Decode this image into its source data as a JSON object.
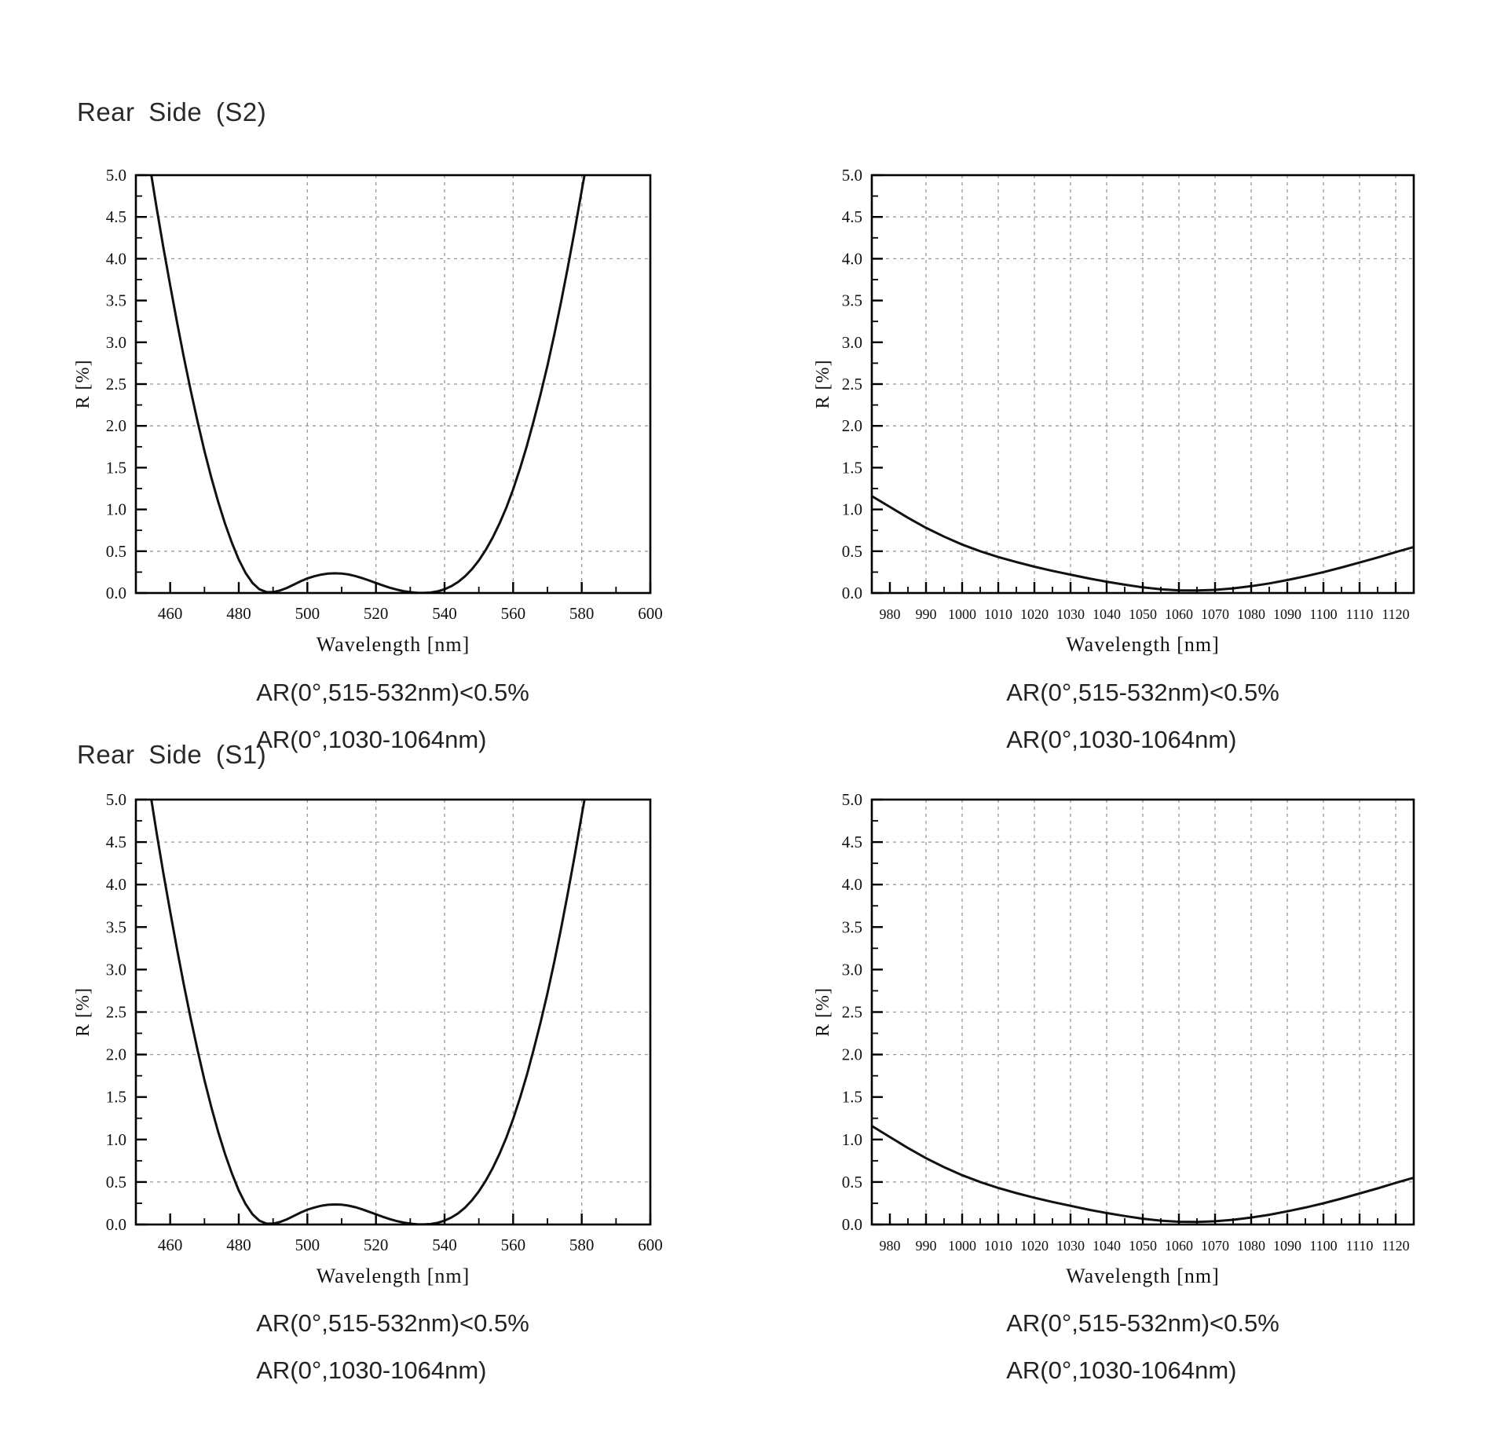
{
  "page": {
    "background": "#ffffff",
    "text_color": "#1a1a1a",
    "grid_color": "#999999",
    "curve_color": "#111111",
    "frame_color": "#000000"
  },
  "sections": [
    {
      "heading": "Rear Side (S2)",
      "left_caption": {
        "line1": "AR(0°,515-532nm)<0.5%",
        "line2": "AR(0°,1030-1064nm)"
      },
      "right_caption": {
        "line1": "AR(0°,515-532nm)<0.5%",
        "line2": "AR(0°,1030-1064nm)"
      }
    },
    {
      "heading": "Rear Side (S1)",
      "left_caption": {
        "line1": "AR(0°,515-532nm)<0.5%",
        "line2": "AR(0°,1030-1064nm)"
      },
      "right_caption": {
        "line1": "AR(0°,515-532nm)<0.5%",
        "line2": "AR(0°,1030-1064nm)"
      }
    }
  ],
  "chart_data": [
    {
      "type": "line",
      "section": "Rear Side (S2)",
      "position": "left",
      "title": "",
      "xlabel": "Wavelength [nm]",
      "ylabel": "R [%]",
      "xlim": [
        450,
        600
      ],
      "ylim": [
        0,
        5
      ],
      "x_ticks": [
        460,
        480,
        500,
        520,
        540,
        560,
        580,
        600
      ],
      "x_minor_step": 10,
      "y_tick_step": 0.5,
      "y_minor_step": 0.25,
      "grid_x": [
        500,
        520,
        540,
        560,
        580
      ],
      "grid_y": [
        0.5,
        2.0,
        2.5,
        4.0,
        4.5
      ],
      "grid_style": "dashed",
      "legend": "none",
      "series": [
        {
          "name": "R",
          "points": [
            [
              454.5,
              5.0
            ],
            [
              456,
              4.62
            ],
            [
              458,
              4.14
            ],
            [
              460,
              3.68
            ],
            [
              462,
              3.24
            ],
            [
              464,
              2.82
            ],
            [
              466,
              2.42
            ],
            [
              468,
              2.05
            ],
            [
              470,
              1.7
            ],
            [
              472,
              1.38
            ],
            [
              474,
              1.09
            ],
            [
              476,
              0.83
            ],
            [
              478,
              0.6
            ],
            [
              480,
              0.4
            ],
            [
              482,
              0.24
            ],
            [
              484,
              0.12
            ],
            [
              486,
              0.045
            ],
            [
              488,
              0.012
            ],
            [
              490,
              0.01
            ],
            [
              492,
              0.03
            ],
            [
              494,
              0.06
            ],
            [
              496,
              0.1
            ],
            [
              498,
              0.14
            ],
            [
              500,
              0.175
            ],
            [
              502,
              0.2
            ],
            [
              504,
              0.22
            ],
            [
              506,
              0.232
            ],
            [
              508,
              0.236
            ],
            [
              510,
              0.233
            ],
            [
              512,
              0.222
            ],
            [
              514,
              0.203
            ],
            [
              516,
              0.178
            ],
            [
              518,
              0.15
            ],
            [
              520,
              0.12
            ],
            [
              522,
              0.091
            ],
            [
              524,
              0.064
            ],
            [
              526,
              0.041
            ],
            [
              528,
              0.023
            ],
            [
              530,
              0.01
            ],
            [
              532,
              0.003
            ],
            [
              534,
              0.001
            ],
            [
              536,
              0.006
            ],
            [
              538,
              0.02
            ],
            [
              540,
              0.045
            ],
            [
              542,
              0.082
            ],
            [
              544,
              0.133
            ],
            [
              546,
              0.2
            ],
            [
              548,
              0.285
            ],
            [
              550,
              0.39
            ],
            [
              552,
              0.515
            ],
            [
              554,
              0.66
            ],
            [
              556,
              0.83
            ],
            [
              558,
              1.02
            ],
            [
              560,
              1.24
            ],
            [
              562,
              1.49
            ],
            [
              564,
              1.76
            ],
            [
              566,
              2.06
            ],
            [
              568,
              2.38
            ],
            [
              570,
              2.72
            ],
            [
              572,
              3.09
            ],
            [
              574,
              3.49
            ],
            [
              576,
              3.91
            ],
            [
              578,
              4.35
            ],
            [
              580,
              4.82
            ],
            [
              580.8,
              5.0
            ]
          ]
        }
      ]
    },
    {
      "type": "line",
      "section": "Rear Side (S2)",
      "position": "right",
      "title": "",
      "xlabel": "Wavelength [nm]",
      "ylabel": "R [%]",
      "xlim": [
        975,
        1125
      ],
      "ylim": [
        0,
        5
      ],
      "x_ticks": [
        980,
        990,
        1000,
        1010,
        1020,
        1030,
        1040,
        1050,
        1060,
        1070,
        1080,
        1090,
        1100,
        1110,
        1120
      ],
      "x_minor_step": 5,
      "y_tick_step": 0.5,
      "y_minor_step": 0.25,
      "grid_x": [
        990,
        1000,
        1010,
        1020,
        1030,
        1040,
        1050,
        1060,
        1070,
        1080,
        1090,
        1100,
        1110,
        1120
      ],
      "grid_y": [
        0.5,
        2.0,
        2.5,
        4.0,
        4.5
      ],
      "grid_style": "dashed",
      "legend": "none",
      "series": [
        {
          "name": "R",
          "points": [
            [
              975,
              1.16
            ],
            [
              980,
              1.03
            ],
            [
              985,
              0.9
            ],
            [
              990,
              0.78
            ],
            [
              995,
              0.675
            ],
            [
              1000,
              0.58
            ],
            [
              1005,
              0.5
            ],
            [
              1010,
              0.43
            ],
            [
              1015,
              0.37
            ],
            [
              1020,
              0.315
            ],
            [
              1025,
              0.265
            ],
            [
              1030,
              0.22
            ],
            [
              1035,
              0.175
            ],
            [
              1040,
              0.135
            ],
            [
              1045,
              0.1
            ],
            [
              1050,
              0.068
            ],
            [
              1055,
              0.045
            ],
            [
              1060,
              0.032
            ],
            [
              1065,
              0.03
            ],
            [
              1070,
              0.038
            ],
            [
              1075,
              0.055
            ],
            [
              1080,
              0.082
            ],
            [
              1085,
              0.115
            ],
            [
              1090,
              0.155
            ],
            [
              1095,
              0.2
            ],
            [
              1100,
              0.25
            ],
            [
              1105,
              0.305
            ],
            [
              1110,
              0.365
            ],
            [
              1115,
              0.425
            ],
            [
              1120,
              0.49
            ],
            [
              1125,
              0.55
            ]
          ]
        }
      ]
    },
    {
      "type": "line",
      "section": "Rear Side (S1)",
      "position": "left",
      "title": "",
      "xlabel": "Wavelength [nm]",
      "ylabel": "R [%]",
      "xlim": [
        450,
        600
      ],
      "ylim": [
        0,
        5
      ],
      "x_ticks": [
        460,
        480,
        500,
        520,
        540,
        560,
        580,
        600
      ],
      "x_minor_step": 10,
      "y_tick_step": 0.5,
      "y_minor_step": 0.25,
      "grid_x": [
        500,
        520,
        540,
        560,
        580
      ],
      "grid_y": [
        0.5,
        2.0,
        2.5,
        4.0,
        4.5
      ],
      "grid_style": "dashed",
      "legend": "none",
      "series": [
        {
          "name": "R",
          "points": [
            [
              454.5,
              5.0
            ],
            [
              456,
              4.62
            ],
            [
              458,
              4.14
            ],
            [
              460,
              3.68
            ],
            [
              462,
              3.24
            ],
            [
              464,
              2.82
            ],
            [
              466,
              2.42
            ],
            [
              468,
              2.05
            ],
            [
              470,
              1.7
            ],
            [
              472,
              1.38
            ],
            [
              474,
              1.09
            ],
            [
              476,
              0.83
            ],
            [
              478,
              0.6
            ],
            [
              480,
              0.4
            ],
            [
              482,
              0.24
            ],
            [
              484,
              0.12
            ],
            [
              486,
              0.045
            ],
            [
              488,
              0.012
            ],
            [
              490,
              0.01
            ],
            [
              492,
              0.03
            ],
            [
              494,
              0.06
            ],
            [
              496,
              0.1
            ],
            [
              498,
              0.14
            ],
            [
              500,
              0.175
            ],
            [
              502,
              0.2
            ],
            [
              504,
              0.22
            ],
            [
              506,
              0.232
            ],
            [
              508,
              0.236
            ],
            [
              510,
              0.233
            ],
            [
              512,
              0.222
            ],
            [
              514,
              0.203
            ],
            [
              516,
              0.178
            ],
            [
              518,
              0.15
            ],
            [
              520,
              0.12
            ],
            [
              522,
              0.091
            ],
            [
              524,
              0.064
            ],
            [
              526,
              0.041
            ],
            [
              528,
              0.023
            ],
            [
              530,
              0.01
            ],
            [
              532,
              0.003
            ],
            [
              534,
              0.001
            ],
            [
              536,
              0.006
            ],
            [
              538,
              0.02
            ],
            [
              540,
              0.045
            ],
            [
              542,
              0.082
            ],
            [
              544,
              0.133
            ],
            [
              546,
              0.2
            ],
            [
              548,
              0.285
            ],
            [
              550,
              0.39
            ],
            [
              552,
              0.515
            ],
            [
              554,
              0.66
            ],
            [
              556,
              0.83
            ],
            [
              558,
              1.02
            ],
            [
              560,
              1.24
            ],
            [
              562,
              1.49
            ],
            [
              564,
              1.76
            ],
            [
              566,
              2.06
            ],
            [
              568,
              2.38
            ],
            [
              570,
              2.72
            ],
            [
              572,
              3.09
            ],
            [
              574,
              3.49
            ],
            [
              576,
              3.91
            ],
            [
              578,
              4.35
            ],
            [
              580,
              4.82
            ],
            [
              580.8,
              5.0
            ]
          ]
        }
      ]
    },
    {
      "type": "line",
      "section": "Rear Side (S1)",
      "position": "right",
      "title": "",
      "xlabel": "Wavelength [nm]",
      "ylabel": "R [%]",
      "xlim": [
        975,
        1125
      ],
      "ylim": [
        0,
        5
      ],
      "x_ticks": [
        980,
        990,
        1000,
        1010,
        1020,
        1030,
        1040,
        1050,
        1060,
        1070,
        1080,
        1090,
        1100,
        1110,
        1120
      ],
      "x_minor_step": 5,
      "y_tick_step": 0.5,
      "y_minor_step": 0.25,
      "grid_x": [
        990,
        1000,
        1010,
        1020,
        1030,
        1040,
        1050,
        1060,
        1070,
        1080,
        1090,
        1100,
        1110,
        1120
      ],
      "grid_y": [
        0.5,
        2.0,
        2.5,
        4.0,
        4.5
      ],
      "grid_style": "dashed",
      "legend": "none",
      "series": [
        {
          "name": "R",
          "points": [
            [
              975,
              1.16
            ],
            [
              980,
              1.03
            ],
            [
              985,
              0.9
            ],
            [
              990,
              0.78
            ],
            [
              995,
              0.675
            ],
            [
              1000,
              0.58
            ],
            [
              1005,
              0.5
            ],
            [
              1010,
              0.43
            ],
            [
              1015,
              0.37
            ],
            [
              1020,
              0.315
            ],
            [
              1025,
              0.265
            ],
            [
              1030,
              0.22
            ],
            [
              1035,
              0.175
            ],
            [
              1040,
              0.135
            ],
            [
              1045,
              0.1
            ],
            [
              1050,
              0.068
            ],
            [
              1055,
              0.045
            ],
            [
              1060,
              0.032
            ],
            [
              1065,
              0.03
            ],
            [
              1070,
              0.038
            ],
            [
              1075,
              0.055
            ],
            [
              1080,
              0.082
            ],
            [
              1085,
              0.115
            ],
            [
              1090,
              0.155
            ],
            [
              1095,
              0.2
            ],
            [
              1100,
              0.25
            ],
            [
              1105,
              0.305
            ],
            [
              1110,
              0.365
            ],
            [
              1115,
              0.425
            ],
            [
              1120,
              0.49
            ],
            [
              1125,
              0.55
            ]
          ]
        }
      ]
    }
  ]
}
